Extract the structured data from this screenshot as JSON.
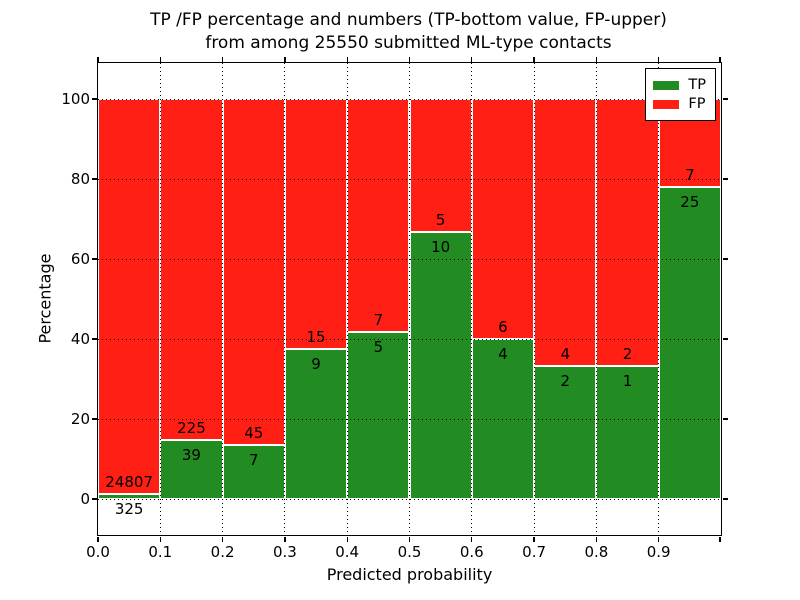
{
  "chart_data": {
    "type": "bar",
    "stacked": true,
    "title": "TP /FP percentage and numbers (TP-bottom value, FP-upper)\nfrom among 25550 submitted ML-type contacts",
    "title_line1": "TP /FP percentage and numbers (TP-bottom value, FP-upper)",
    "title_line2": "from among 25550 submitted ML-type contacts",
    "xlabel": "Predicted probability",
    "ylabel": "Percentage",
    "total_contacts": 25550,
    "categories": [
      "0.0-0.1",
      "0.1-0.2",
      "0.2-0.3",
      "0.3-0.4",
      "0.4-0.5",
      "0.5-0.6",
      "0.6-0.7",
      "0.7-0.8",
      "0.8-0.9",
      "0.9-1.0"
    ],
    "series": [
      {
        "name": "TP",
        "color": "#228B22",
        "counts": [
          325,
          39,
          7,
          9,
          5,
          10,
          4,
          2,
          1,
          25
        ]
      },
      {
        "name": "FP",
        "color": "#FF1F14",
        "counts": [
          24807,
          225,
          45,
          15,
          7,
          5,
          6,
          4,
          2,
          7
        ]
      }
    ],
    "x_tick_labels": [
      "0.0",
      "0.1",
      "0.2",
      "0.3",
      "0.4",
      "0.5",
      "0.6",
      "0.7",
      "0.8",
      "0.9"
    ],
    "y_tick_values": [
      0,
      20,
      40,
      60,
      80,
      100
    ],
    "xlim": [
      0.0,
      1.0
    ],
    "ylim": [
      -9,
      109
    ],
    "grid": {
      "visible": true,
      "linestyle": "dotted",
      "color": "#000000"
    },
    "bar_edge_color": "#FFFFFF",
    "legend": {
      "position": "upper right",
      "items": [
        {
          "label": "TP",
          "color": "#228B22"
        },
        {
          "label": "FP",
          "color": "#FF1F14"
        }
      ]
    }
  }
}
